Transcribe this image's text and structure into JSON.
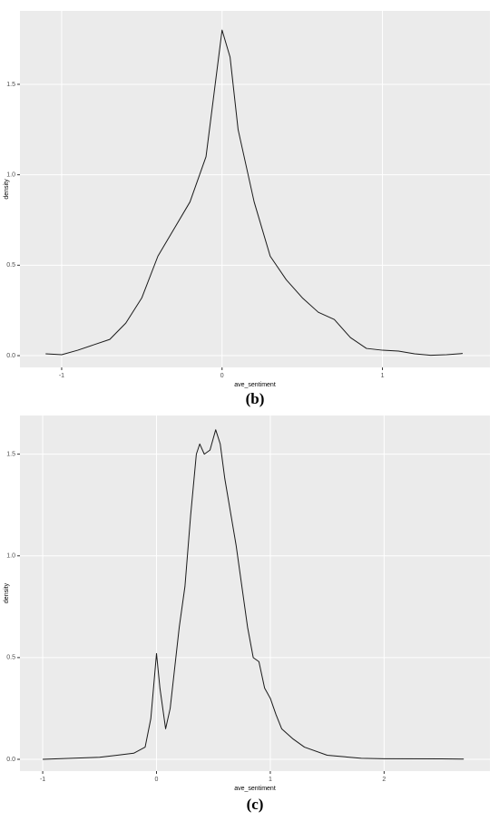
{
  "chart_data": [
    {
      "type": "line",
      "caption": "(b)",
      "xlabel": "ave_sentiment",
      "ylabel": "density",
      "color": "#1a1a1a",
      "grid": true,
      "xlim": [
        -1.26,
        1.67
      ],
      "ylim": [
        -0.065,
        1.906
      ],
      "xticks": [
        -1,
        0,
        1
      ],
      "yticks": [
        {
          "value": 0,
          "label": "0.0"
        },
        0.5,
        {
          "value": 1,
          "label": "1.0"
        },
        1.5
      ],
      "x": [
        -1.1,
        -1.0,
        -0.9,
        -0.8,
        -0.7,
        -0.6,
        -0.5,
        -0.4,
        -0.3,
        -0.2,
        -0.1,
        -0.05,
        0,
        0.05,
        0.1,
        0.2,
        0.3,
        0.4,
        0.5,
        0.6,
        0.7,
        0.8,
        0.9,
        1.0,
        1.1,
        1.2,
        1.3,
        1.4,
        1.5
      ],
      "values": [
        0.01,
        0.005,
        0.03,
        0.06,
        0.09,
        0.18,
        0.32,
        0.55,
        0.7,
        0.85,
        1.1,
        1.45,
        1.8,
        1.65,
        1.25,
        0.85,
        0.55,
        0.42,
        0.32,
        0.24,
        0.2,
        0.1,
        0.04,
        0.03,
        0.025,
        0.01,
        0.002,
        0.005,
        0.012
      ]
    },
    {
      "type": "line",
      "caption": "(c)",
      "xlabel": "ave_sentiment",
      "ylabel": "density",
      "color": "#1a1a1a",
      "grid": true,
      "xlim": [
        -1.2,
        2.93
      ],
      "ylim": [
        -0.058,
        1.69
      ],
      "xticks": [
        -1,
        0,
        1,
        2
      ],
      "yticks": [
        {
          "value": 0,
          "label": "0.0"
        },
        0.5,
        {
          "value": 1,
          "label": "1.0"
        },
        1.5
      ],
      "x": [
        -1,
        -0.5,
        -0.2,
        -0.1,
        -0.05,
        0,
        0.03,
        0.08,
        0.12,
        0.2,
        0.25,
        0.3,
        0.35,
        0.38,
        0.42,
        0.47,
        0.52,
        0.56,
        0.6,
        0.7,
        0.8,
        0.85,
        0.9,
        0.95,
        1.0,
        1.05,
        1.1,
        1.2,
        1.3,
        1.5,
        1.6,
        1.8,
        2.0,
        2.5,
        2.7
      ],
      "values": [
        0,
        0.01,
        0.03,
        0.06,
        0.2,
        0.52,
        0.35,
        0.15,
        0.25,
        0.65,
        0.85,
        1.2,
        1.5,
        1.55,
        1.5,
        1.52,
        1.62,
        1.55,
        1.38,
        1.05,
        0.65,
        0.5,
        0.48,
        0.35,
        0.3,
        0.22,
        0.15,
        0.1,
        0.06,
        0.02,
        0.015,
        0.005,
        0.003,
        0.002,
        0.001
      ]
    }
  ]
}
